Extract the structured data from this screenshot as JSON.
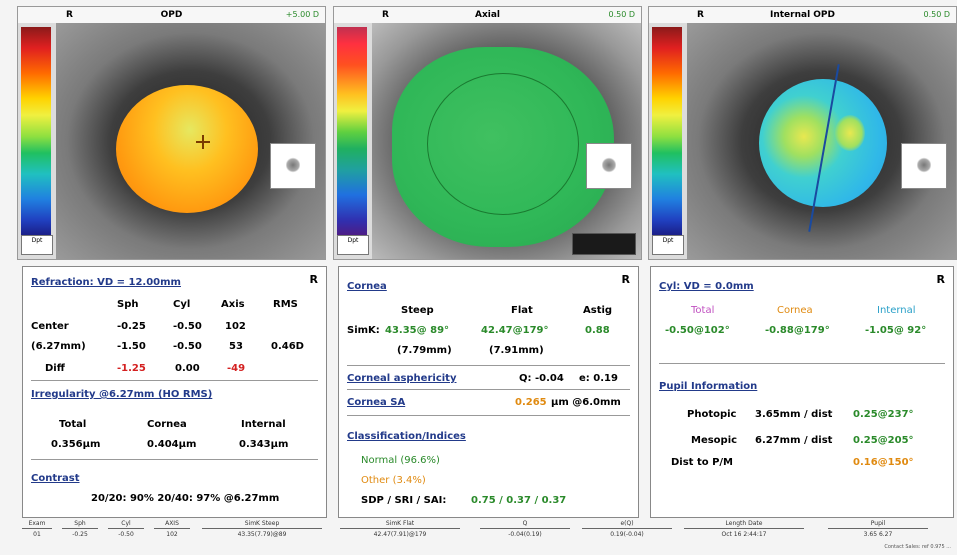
{
  "maps": [
    {
      "eye": "R",
      "title": "OPD",
      "right": "+5.00 D",
      "scale_unit": "Dpt"
    },
    {
      "eye": "R",
      "title": "Axial",
      "right": "0.50 D",
      "scale_unit": "Dpt"
    },
    {
      "eye": "R",
      "title": "Internal OPD",
      "right": "0.50 D",
      "scale_unit": "Dpt"
    }
  ],
  "refraction": {
    "title": "Refraction: VD = 12.00mm",
    "eye": "R",
    "columns": [
      "Sph",
      "Cyl",
      "Axis",
      "RMS"
    ],
    "rows": [
      {
        "label": "Center",
        "sph": "-0.25",
        "cyl": "-0.50",
        "axis": "102",
        "rms": ""
      },
      {
        "label": "(6.27mm)",
        "sph": "-1.50",
        "cyl": "-0.50",
        "axis": "53",
        "rms": "0.46D"
      },
      {
        "label": "Diff",
        "sph": "-1.25",
        "cyl": "0.00",
        "axis": "-49",
        "rms": ""
      }
    ]
  },
  "irregularity": {
    "title": "Irregularity @6.27mm (HO RMS)",
    "columns": [
      "Total",
      "Cornea",
      "Internal"
    ],
    "values": [
      "0.356µm",
      "0.404µm",
      "0.343µm"
    ]
  },
  "contrast": {
    "title": "Contrast",
    "value": "20/20: 90% 20/40: 97% @6.27mm"
  },
  "cornea": {
    "title": "Cornea",
    "eye": "R",
    "columns": [
      "Steep",
      "Flat",
      "Astig"
    ],
    "simk_label": "SimK:",
    "steep": "43.35@ 89°",
    "flat": "42.47@179°",
    "astig": "0.88",
    "steep_mm": "(7.79mm)",
    "flat_mm": "(7.91mm)",
    "asph_title": "Corneal asphericity",
    "q": "Q: -0.04",
    "e": "e: 0.19",
    "sa_title": "Cornea SA",
    "sa_val": "0.265",
    "sa_unit": "µm @6.0mm",
    "class_title": "Classification/Indices",
    "normal": "Normal (96.6%)",
    "other": "Other (3.4%)",
    "sdp_label": "SDP / SRI / SAI:",
    "sdp_vals": "0.75 / 0.37 / 0.37"
  },
  "cyl": {
    "title": "Cyl: VD = 0.0mm",
    "eye": "R",
    "total_label": "Total",
    "cornea_label": "Cornea",
    "internal_label": "Internal",
    "total": "-0.50@102°",
    "cornea": "-0.88@179°",
    "internal": "-1.05@ 92°",
    "pupil_title": "Pupil Information",
    "photopic_label": "Photopic",
    "photopic_val": "3.65mm / dist",
    "photopic_dist": "0.25@237°",
    "mesopic_label": "Mesopic",
    "mesopic_val": "6.27mm / dist",
    "mesopic_dist": "0.25@205°",
    "distpm_label": "Dist to P/M",
    "distpm_dist": "0.16@150°"
  },
  "footer": {
    "cols": [
      {
        "h": "Exam",
        "v": "01"
      },
      {
        "h": "Sph",
        "v": "-0.25"
      },
      {
        "h": "Cyl",
        "v": "-0.50"
      },
      {
        "h": "AXIS",
        "v": "102"
      },
      {
        "h": "SimK Steep",
        "v": "43.35(7.79)@89"
      },
      {
        "h": "SimK Flat",
        "v": "42.47(7.91)@179"
      },
      {
        "h": "Q",
        "v": "-0.04(0.19)"
      },
      {
        "h": "e(Q)",
        "v": "0.19(-0.04)"
      },
      {
        "h": "Length Date",
        "v": "Oct 16 2:44:17"
      },
      {
        "h": "Pupil",
        "v": "3.65 6.27"
      }
    ],
    "credit": "Contact Sales: ref 0.975 ..."
  }
}
